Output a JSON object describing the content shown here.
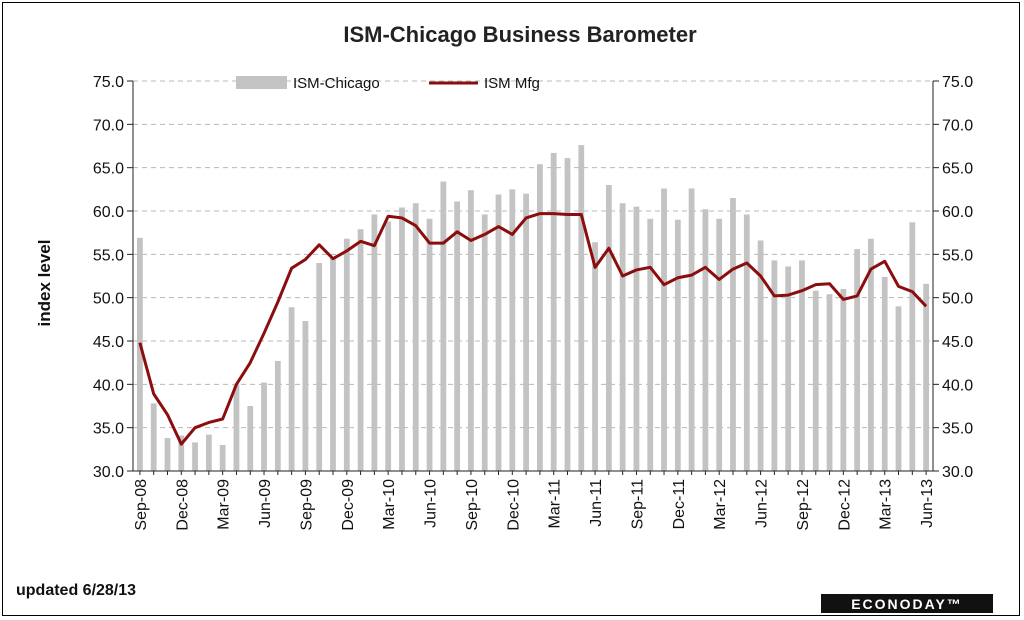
{
  "chart_data": {
    "type": "bar",
    "title": "ISM-Chicago Business Barometer",
    "xlabel": "",
    "ylabel": "index level",
    "ylim": [
      30,
      75
    ],
    "y_ticks": [
      "75.0",
      "70.0",
      "65.0",
      "60.0",
      "55.0",
      "50.0",
      "45.0",
      "40.0",
      "35.0",
      "30.0"
    ],
    "y2_ticks": [
      "75.0",
      "70.0",
      "65.0",
      "60.0",
      "55.0",
      "50.0",
      "45.0",
      "40.0",
      "35.0",
      "30.0"
    ],
    "grid": true,
    "legend_position": "top",
    "categories": [
      "Sep-08",
      "Oct-08",
      "Nov-08",
      "Dec-08",
      "Jan-09",
      "Feb-09",
      "Mar-09",
      "Apr-09",
      "May-09",
      "Jun-09",
      "Jul-09",
      "Aug-09",
      "Sep-09",
      "Oct-09",
      "Nov-09",
      "Dec-09",
      "Jan-10",
      "Feb-10",
      "Mar-10",
      "Apr-10",
      "May-10",
      "Jun-10",
      "Jul-10",
      "Aug-10",
      "Sep-10",
      "Oct-10",
      "Nov-10",
      "Dec-10",
      "Jan-11",
      "Feb-11",
      "Mar-11",
      "Apr-11",
      "May-11",
      "Jun-11",
      "Jul-11",
      "Aug-11",
      "Sep-11",
      "Oct-11",
      "Nov-11",
      "Dec-11",
      "Jan-12",
      "Feb-12",
      "Mar-12",
      "Apr-12",
      "May-12",
      "Jun-12",
      "Jul-12",
      "Aug-12",
      "Sep-12",
      "Oct-12",
      "Nov-12",
      "Dec-12",
      "Jan-13",
      "Feb-13",
      "Mar-13",
      "Apr-13",
      "May-13",
      "Jun-13"
    ],
    "x_tick_labels": [
      "Sep-08",
      "Dec-08",
      "Mar-09",
      "Jun-09",
      "Sep-09",
      "Dec-09",
      "Mar-10",
      "Jun-10",
      "Sep-10",
      "Dec-10",
      "Mar-11",
      "Jun-11",
      "Sep-11",
      "Dec-11",
      "Mar-12",
      "Jun-12",
      "Sep-12",
      "Dec-12",
      "Mar-13",
      "Jun-13"
    ],
    "x_tick_every": 3,
    "series": [
      {
        "name": "ISM-Chicago",
        "kind": "bar",
        "color": "#c3c3c3",
        "values": [
          56.9,
          37.8,
          33.8,
          34.1,
          33.3,
          34.2,
          33.0,
          40.0,
          37.5,
          40.2,
          42.7,
          48.9,
          47.3,
          54.0,
          54.6,
          56.8,
          57.9,
          59.6,
          58.8,
          60.4,
          60.9,
          59.1,
          63.4,
          61.1,
          62.4,
          59.6,
          61.9,
          62.5,
          62.0,
          65.4,
          66.7,
          66.1,
          67.6,
          56.4,
          63.0,
          60.9,
          60.5,
          59.1,
          62.6,
          59.0,
          62.6,
          60.2,
          59.1,
          61.5,
          59.6,
          56.6,
          54.3,
          53.6,
          54.3,
          50.8,
          50.4,
          51.0,
          55.6,
          56.8,
          52.4,
          49.0,
          58.7,
          51.6
        ]
      },
      {
        "name": "ISM Mfg",
        "kind": "line",
        "color": "#8b0d0d",
        "values": [
          44.8,
          38.9,
          36.5,
          33.1,
          35.0,
          35.6,
          36.0,
          40.0,
          42.5,
          45.9,
          49.5,
          53.4,
          54.4,
          56.1,
          54.5,
          55.4,
          56.5,
          56.0,
          59.4,
          59.2,
          58.3,
          56.3,
          56.3,
          57.6,
          56.6,
          57.3,
          58.2,
          57.3,
          59.2,
          59.7,
          59.7,
          59.6,
          59.6,
          53.5,
          55.7,
          52.5,
          53.2,
          53.5,
          51.5,
          52.3,
          52.6,
          53.5,
          52.1,
          53.3,
          54.0,
          52.5,
          50.2,
          50.3,
          50.8,
          51.5,
          51.6,
          49.8,
          50.2,
          53.3,
          54.2,
          51.3,
          50.7,
          49.0
        ]
      }
    ]
  },
  "footer": {
    "updated": "updated 6/28/13",
    "brand": "ECONODAY™"
  }
}
